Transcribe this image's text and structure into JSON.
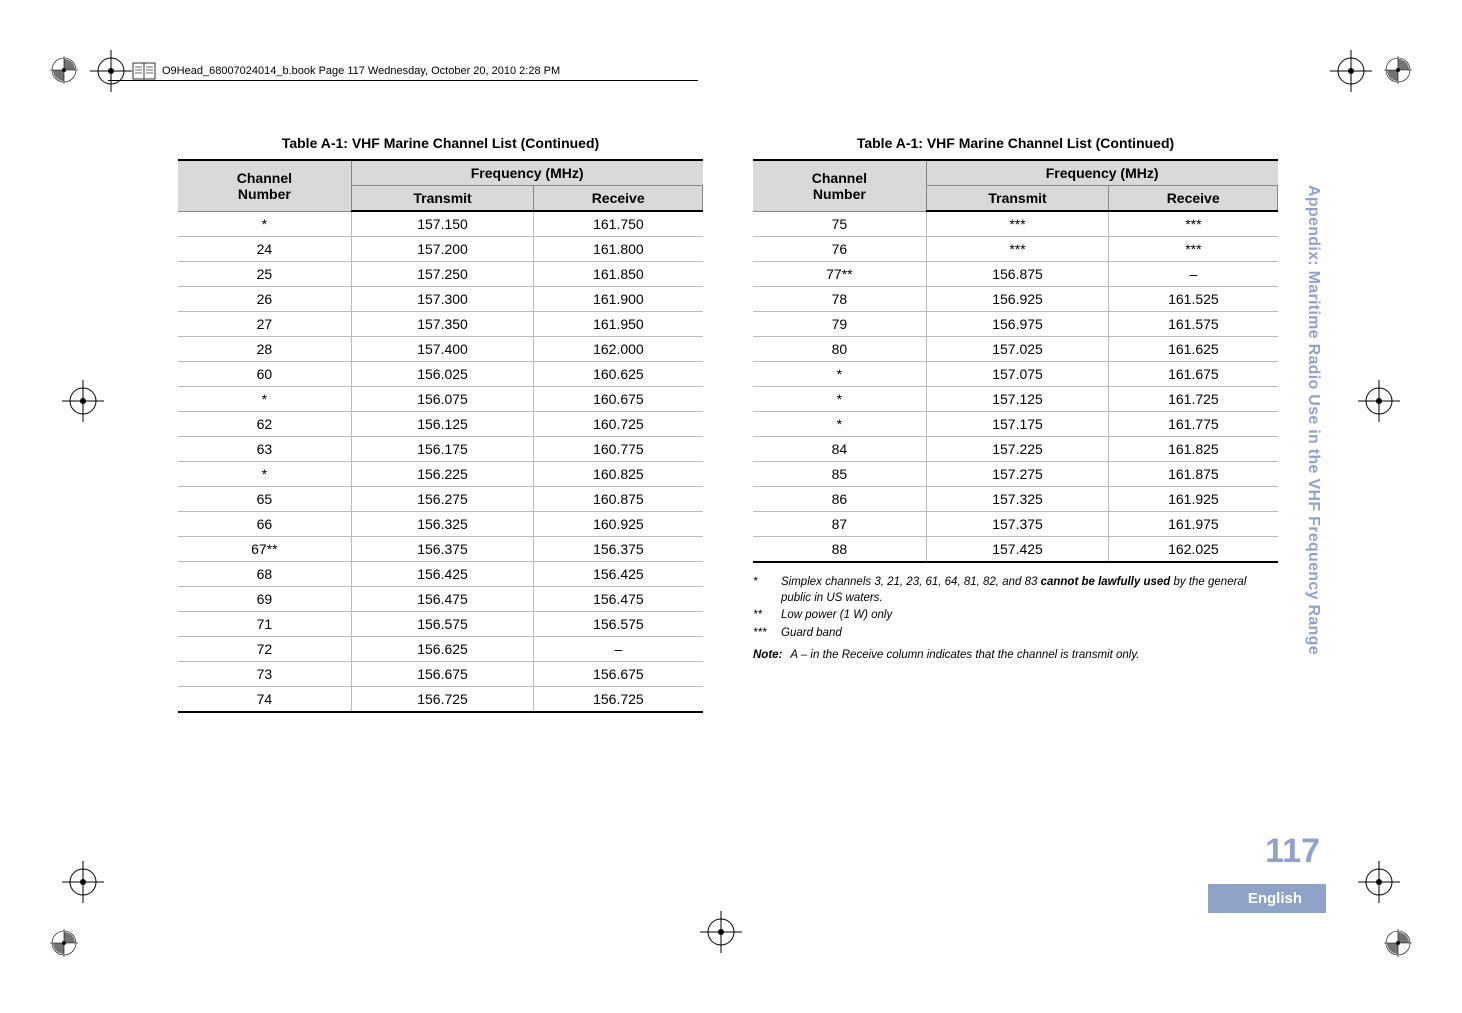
{
  "header_text": "O9Head_68007024014_b.book  Page 117  Wednesday, October 20, 2010  2:28 PM",
  "side_title": "Appendix: Maritime Radio Use in the VHF Frequency Range",
  "page_number": "117",
  "language": "English",
  "colors": {
    "accent": "#8fa3c9",
    "header_bg": "#d9d9d9",
    "text": "#000000",
    "bg": "#ffffff"
  },
  "table_title": "Table A-1: VHF Marine Channel List (Continued)",
  "columns": {
    "channel_line1": "Channel",
    "channel_line2": "Number",
    "freq_group": "Frequency (MHz)",
    "transmit": "Transmit",
    "receive": "Receive"
  },
  "table_left": {
    "rows": [
      [
        "*",
        "157.150",
        "161.750"
      ],
      [
        "24",
        "157.200",
        "161.800"
      ],
      [
        "25",
        "157.250",
        "161.850"
      ],
      [
        "26",
        "157.300",
        "161.900"
      ],
      [
        "27",
        "157.350",
        "161.950"
      ],
      [
        "28",
        "157.400",
        "162.000"
      ],
      [
        "60",
        "156.025",
        "160.625"
      ],
      [
        "*",
        "156.075",
        "160.675"
      ],
      [
        "62",
        "156.125",
        "160.725"
      ],
      [
        "63",
        "156.175",
        "160.775"
      ],
      [
        "*",
        "156.225",
        "160.825"
      ],
      [
        "65",
        "156.275",
        "160.875"
      ],
      [
        "66",
        "156.325",
        "160.925"
      ],
      [
        "67**",
        "156.375",
        "156.375"
      ],
      [
        "68",
        "156.425",
        "156.425"
      ],
      [
        "69",
        "156.475",
        "156.475"
      ],
      [
        "71",
        "156.575",
        "156.575"
      ],
      [
        "72",
        "156.625",
        "–"
      ],
      [
        "73",
        "156.675",
        "156.675"
      ],
      [
        "74",
        "156.725",
        "156.725"
      ]
    ]
  },
  "table_right": {
    "rows": [
      [
        "75",
        "***",
        "***"
      ],
      [
        "76",
        "***",
        "***"
      ],
      [
        "77**",
        "156.875",
        "–"
      ],
      [
        "78",
        "156.925",
        "161.525"
      ],
      [
        "79",
        "156.975",
        "161.575"
      ],
      [
        "80",
        "157.025",
        "161.625"
      ],
      [
        "*",
        "157.075",
        "161.675"
      ],
      [
        "*",
        "157.125",
        "161.725"
      ],
      [
        "*",
        "157.175",
        "161.775"
      ],
      [
        "84",
        "157.225",
        "161.825"
      ],
      [
        "85",
        "157.275",
        "161.875"
      ],
      [
        "86",
        "157.325",
        "161.925"
      ],
      [
        "87",
        "157.375",
        "161.975"
      ],
      [
        "88",
        "157.425",
        "162.025"
      ]
    ]
  },
  "footnotes": [
    {
      "mark": "*",
      "text_pre": "Simplex channels 3, 21, 23, 61, 64, 81, 82, and 83 ",
      "bold": "cannot be lawfully used",
      "text_post": " by the general public in US waters."
    },
    {
      "mark": "**",
      "text_pre": "Low power (1 W) only",
      "bold": "",
      "text_post": ""
    },
    {
      "mark": "***",
      "text_pre": "Guard band",
      "bold": "",
      "text_post": ""
    }
  ],
  "note": {
    "label": "Note:",
    "text": "A – in the Receive column indicates that the channel is transmit only."
  }
}
